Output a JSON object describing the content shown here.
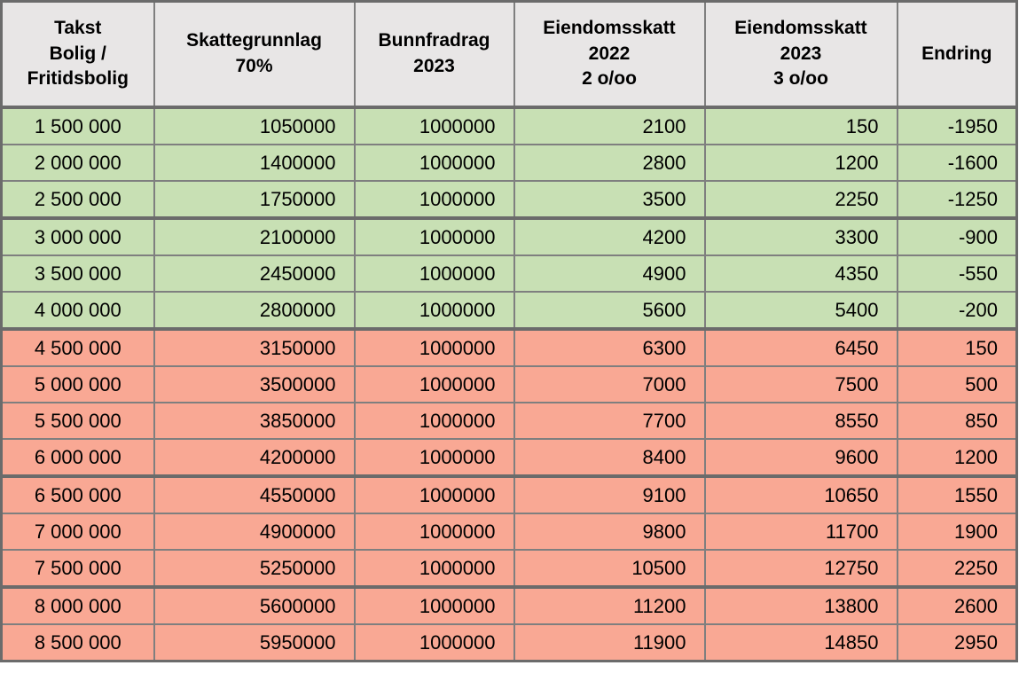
{
  "table": {
    "headers": [
      "Takst\nBolig /\nFritidsbolig",
      "Skattegrunnlag\n70%",
      "Bunnfradrag\n2023",
      "Eiendomsskatt\n2022\n2 o/oo",
      "Eiendomsskatt\n2023\n3 o/oo",
      "Endring"
    ],
    "rows": [
      {
        "band": "green",
        "cells": [
          "1 500 000",
          "1050000",
          "1000000",
          "2100",
          "150",
          "-1950"
        ]
      },
      {
        "band": "green",
        "cells": [
          "2 000 000",
          "1400000",
          "1000000",
          "2800",
          "1200",
          "-1600"
        ]
      },
      {
        "band": "green",
        "cells": [
          "2 500 000",
          "1750000",
          "1000000",
          "3500",
          "2250",
          "-1250"
        ]
      },
      {
        "band": "green",
        "cells": [
          "3 000 000",
          "2100000",
          "1000000",
          "4200",
          "3300",
          "-900"
        ]
      },
      {
        "band": "green",
        "cells": [
          "3 500 000",
          "2450000",
          "1000000",
          "4900",
          "4350",
          "-550"
        ]
      },
      {
        "band": "green",
        "cells": [
          "4 000 000",
          "2800000",
          "1000000",
          "5600",
          "5400",
          "-200"
        ]
      },
      {
        "band": "salmon",
        "cells": [
          "4 500 000",
          "3150000",
          "1000000",
          "6300",
          "6450",
          "150"
        ]
      },
      {
        "band": "salmon",
        "cells": [
          "5 000 000",
          "3500000",
          "1000000",
          "7000",
          "7500",
          "500"
        ]
      },
      {
        "band": "salmon",
        "cells": [
          "5 500 000",
          "3850000",
          "1000000",
          "7700",
          "8550",
          "850"
        ]
      },
      {
        "band": "salmon",
        "cells": [
          "6 000 000",
          "4200000",
          "1000000",
          "8400",
          "9600",
          "1200"
        ]
      },
      {
        "band": "salmon",
        "cells": [
          "6 500 000",
          "4550000",
          "1000000",
          "9100",
          "10650",
          "1550"
        ]
      },
      {
        "band": "salmon",
        "cells": [
          "7 000 000",
          "4900000",
          "1000000",
          "9800",
          "11700",
          "1900"
        ]
      },
      {
        "band": "salmon",
        "cells": [
          "7 500 000",
          "5250000",
          "1000000",
          "10500",
          "12750",
          "2250"
        ]
      },
      {
        "band": "salmon",
        "cells": [
          "8 000 000",
          "5600000",
          "1000000",
          "11200",
          "13800",
          "2600"
        ]
      },
      {
        "band": "salmon",
        "cells": [
          "8 500 000",
          "5950000",
          "1000000",
          "11900",
          "14850",
          "2950"
        ]
      }
    ],
    "group_end_rows": [
      2,
      5,
      9,
      12
    ],
    "colors": {
      "header_bg": "#e8e6e6",
      "green": "#c8e0b4",
      "salmon": "#f9a894",
      "border": "#7f7f7f",
      "border_thick": "#6b6b6b"
    }
  },
  "chart_data": {
    "type": "table",
    "title": "",
    "columns": [
      "Takst Bolig / Fritidsbolig",
      "Skattegrunnlag 70%",
      "Bunnfradrag 2023",
      "Eiendomsskatt 2022 2 o/oo",
      "Eiendomsskatt 2023 3 o/oo",
      "Endring"
    ],
    "rows": [
      [
        1500000,
        1050000,
        1000000,
        2100,
        150,
        -1950
      ],
      [
        2000000,
        1400000,
        1000000,
        2800,
        1200,
        -1600
      ],
      [
        2500000,
        1750000,
        1000000,
        3500,
        2250,
        -1250
      ],
      [
        3000000,
        2100000,
        1000000,
        4200,
        3300,
        -900
      ],
      [
        3500000,
        2450000,
        1000000,
        4900,
        4350,
        -550
      ],
      [
        4000000,
        2800000,
        1000000,
        5600,
        5400,
        -200
      ],
      [
        4500000,
        3150000,
        1000000,
        6300,
        6450,
        150
      ],
      [
        5000000,
        3500000,
        1000000,
        7000,
        7500,
        500
      ],
      [
        5500000,
        3850000,
        1000000,
        7700,
        8550,
        850
      ],
      [
        6000000,
        4200000,
        1000000,
        8400,
        9600,
        1200
      ],
      [
        6500000,
        4550000,
        1000000,
        9100,
        10650,
        1550
      ],
      [
        7000000,
        4900000,
        1000000,
        9800,
        11700,
        1900
      ],
      [
        7500000,
        5250000,
        1000000,
        10500,
        12750,
        2250
      ],
      [
        8000000,
        5600000,
        1000000,
        11200,
        13800,
        2600
      ],
      [
        8500000,
        5950000,
        1000000,
        11900,
        14850,
        2950
      ]
    ],
    "row_highlight_colors": {
      "rows_1_to_6": "#c8e0b4",
      "rows_7_to_15": "#f9a894"
    },
    "layout_hints": {
      "grid": "on",
      "thick_separators_after_data_rows": [
        3,
        6,
        10,
        13
      ],
      "negative_endring_rows_are_green": true,
      "positive_endring_rows_are_salmon": true
    }
  }
}
